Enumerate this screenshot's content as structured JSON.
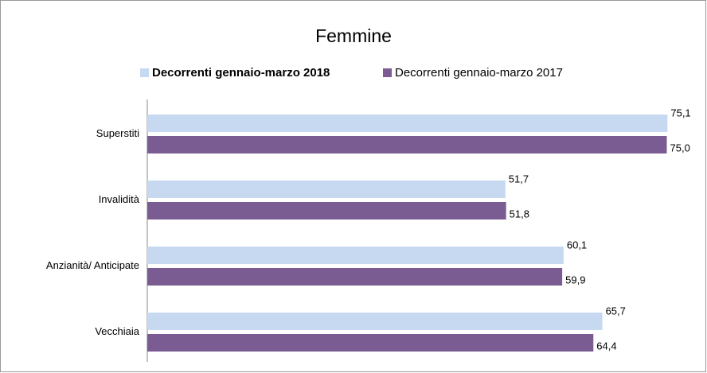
{
  "chart_data": {
    "type": "hbar",
    "title": "Femmine",
    "categories": [
      "Superstiti",
      "Invalidità",
      "Anzianità/ Anticipate",
      "Vecchiaia"
    ],
    "series": [
      {
        "name": "Decorrenti gennaio-marzo 2018",
        "color": "#c6d9f1",
        "values": [
          75.1,
          51.7,
          60.1,
          65.7
        ],
        "value_labels": [
          "75,1",
          "51,7",
          "60,1",
          "65,7"
        ]
      },
      {
        "name": "Decorrenti gennaio-marzo 2017",
        "color": "#7a5c93",
        "values": [
          75.0,
          51.8,
          59.9,
          64.4
        ],
        "value_labels": [
          "75,0",
          "51,8",
          "59,9",
          "64,4"
        ]
      }
    ],
    "xlim": [
      0,
      80
    ],
    "legend": "top"
  }
}
